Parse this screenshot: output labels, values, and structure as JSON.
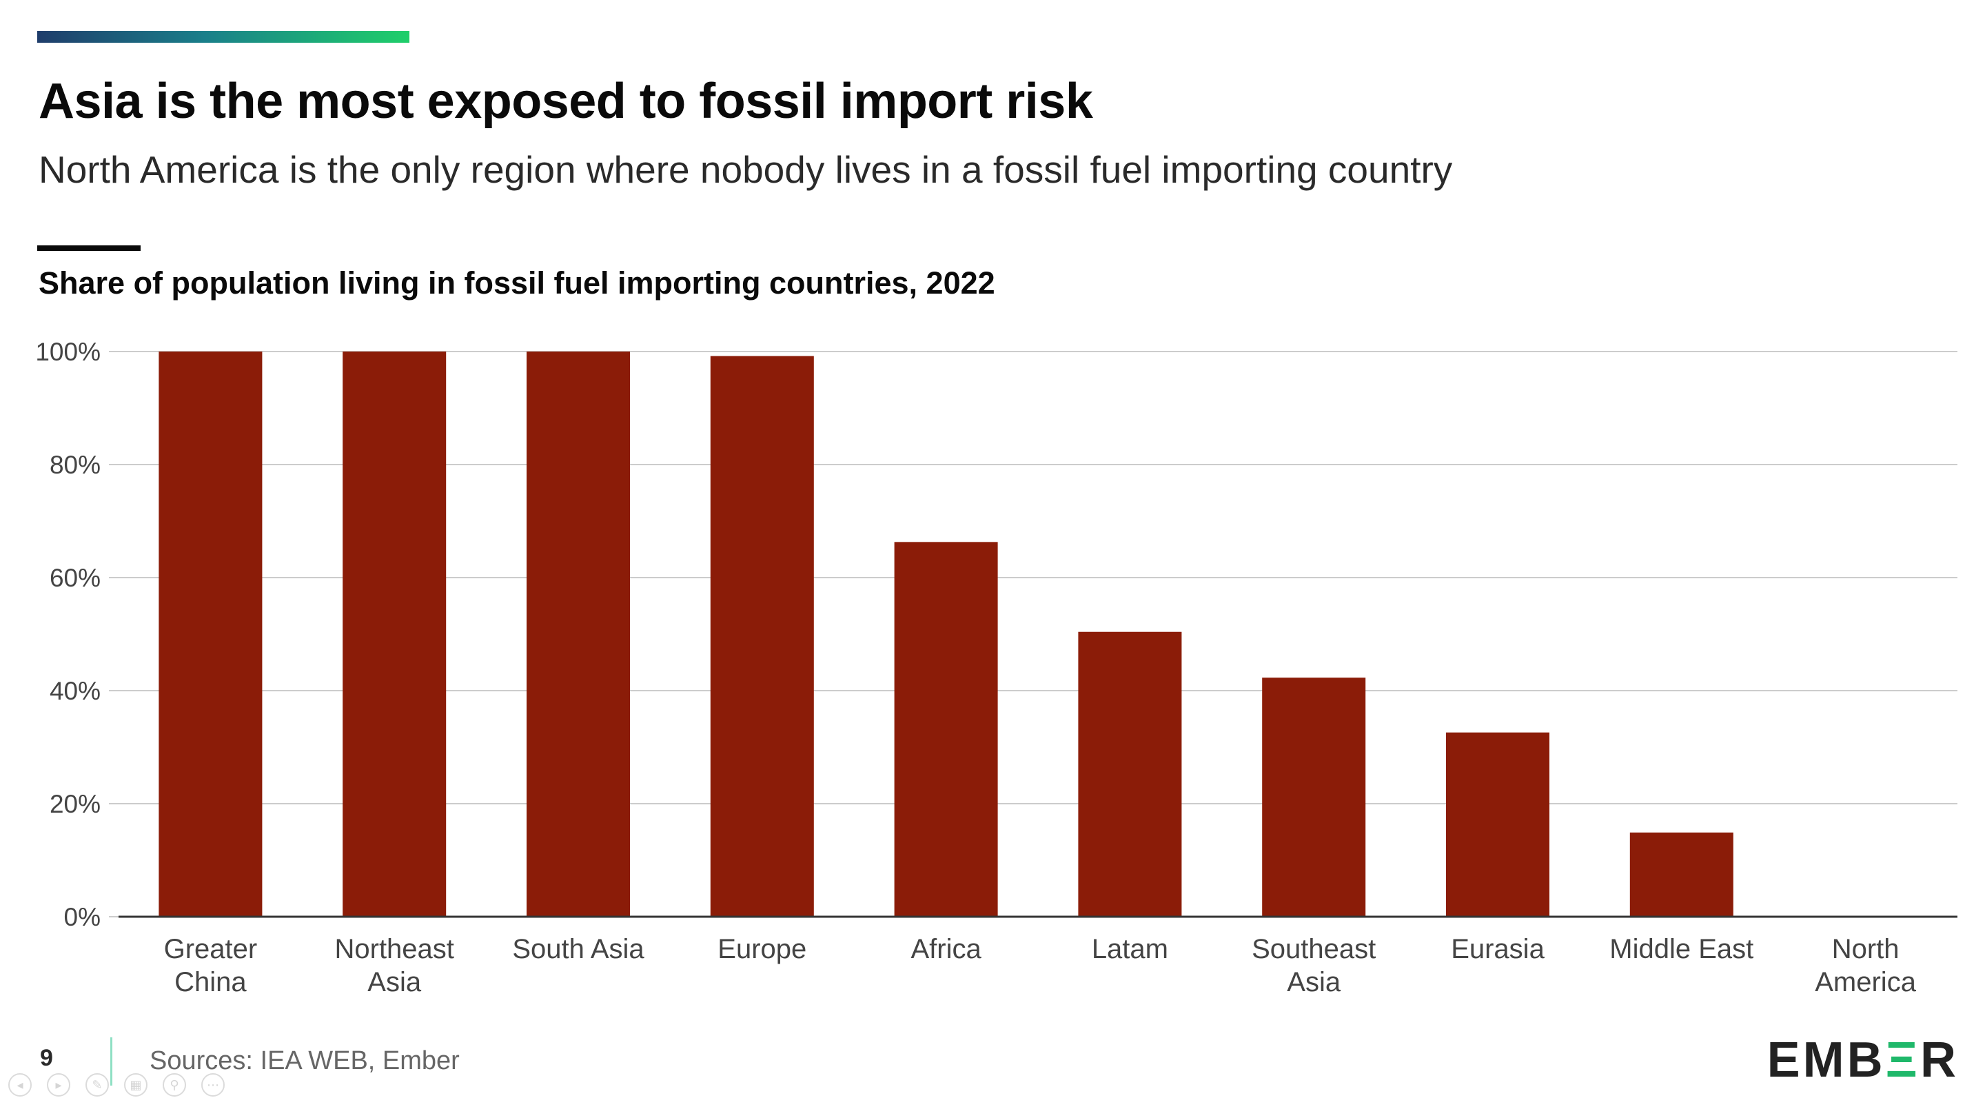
{
  "header": {
    "title": "Asia is the most exposed to fossil import risk",
    "subtitle": "North America is the only region where nobody lives in a fossil fuel importing country"
  },
  "colors": {
    "bar": "#8b1c08",
    "accent_start": "#1f3d6b",
    "accent_end": "#1fcf6a",
    "grid": "#cccccc",
    "axis": "#333333"
  },
  "chart_data": {
    "type": "bar",
    "title": "Share of population living in fossil fuel importing countries, 2022",
    "xlabel": "",
    "ylabel": "",
    "categories": [
      [
        "Greater",
        "China"
      ],
      [
        "Northeast",
        "Asia"
      ],
      [
        "South Asia"
      ],
      [
        "Europe"
      ],
      [
        "Africa"
      ],
      [
        "Latam"
      ],
      [
        "Southeast",
        "Asia"
      ],
      [
        "Eurasia"
      ],
      [
        "Middle East"
      ],
      [
        "North",
        "America"
      ]
    ],
    "values": [
      100,
      100,
      100,
      99.2,
      66.3,
      50.4,
      42.3,
      32.6,
      14.9,
      0
    ],
    "ylim": [
      0,
      100
    ],
    "yticks": [
      0,
      20,
      40,
      60,
      80,
      100
    ],
    "ytick_labels": [
      "0%",
      "20%",
      "40%",
      "60%",
      "80%",
      "100%"
    ],
    "grid": true
  },
  "footer": {
    "page_number": "9",
    "sources": "Sources: IEA WEB, Ember",
    "logo": "EMBER"
  },
  "controls": [
    {
      "icon": "previous-icon"
    },
    {
      "icon": "next-icon"
    },
    {
      "icon": "pen-icon"
    },
    {
      "icon": "slides-icon"
    },
    {
      "icon": "zoom-icon"
    },
    {
      "icon": "more-icon"
    }
  ]
}
